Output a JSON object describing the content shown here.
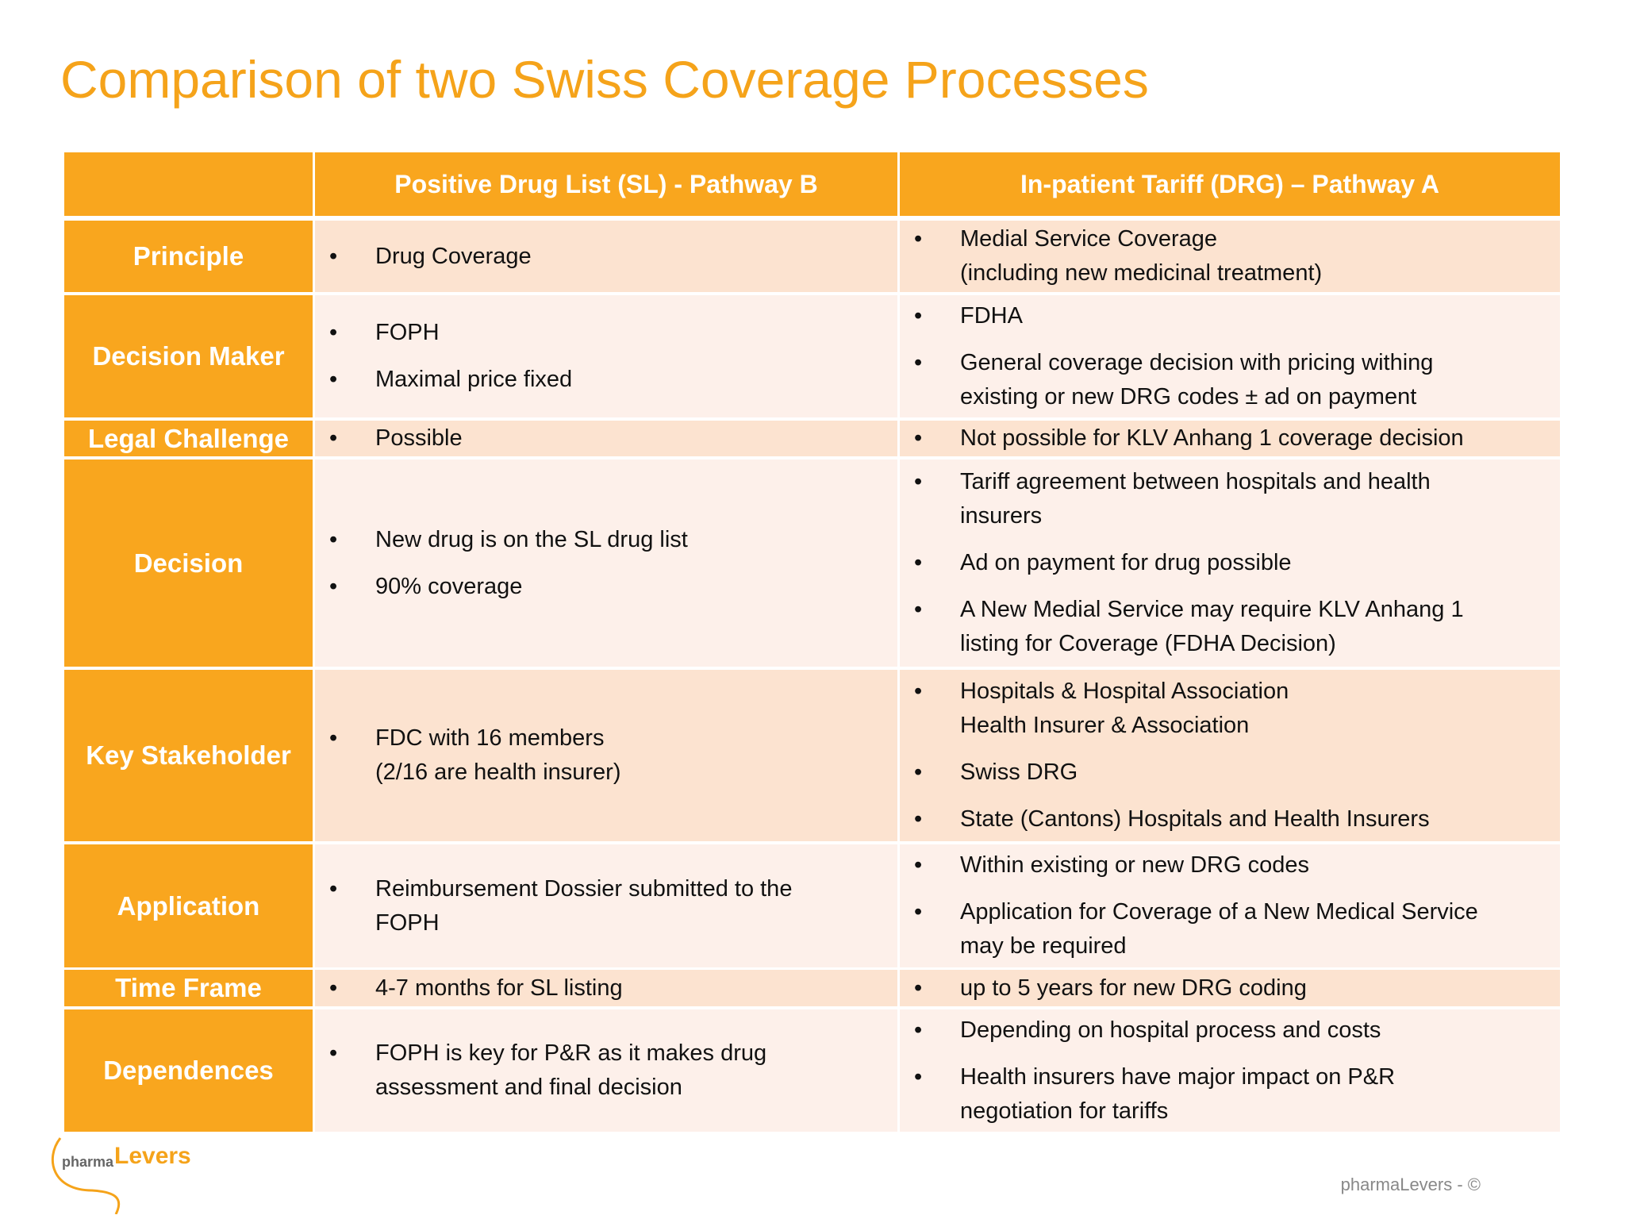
{
  "header": {
    "title": "Comparison of two Swiss Coverage Processes"
  },
  "table": {
    "columns": [
      "Positive Drug List (SL) - Pathway B",
      "In-patient Tariff (DRG) – Pathway A"
    ],
    "rows": [
      {
        "label": "Principle",
        "col1": [
          "Drug Coverage"
        ],
        "col2": [
          "Medial Service Coverage\n(including new medicinal treatment)"
        ]
      },
      {
        "label": "Decision Maker",
        "col1": [
          "FOPH",
          "Maximal price fixed"
        ],
        "col2": [
          "FDHA",
          "General coverage decision with pricing withing\nexisting or new DRG codes ± ad on payment"
        ]
      },
      {
        "label": "Legal Challenge",
        "col1": [
          "Possible"
        ],
        "col2": [
          "Not possible for KLV Anhang 1 coverage decision"
        ]
      },
      {
        "label": "Decision",
        "col1": [
          "New drug is on the SL drug list",
          "90% coverage"
        ],
        "col2": [
          "Tariff agreement between hospitals and health\ninsurers",
          "Ad on payment for drug possible",
          "A New Medial Service may require KLV Anhang 1\nlisting for Coverage (FDHA Decision)"
        ]
      },
      {
        "label": "Key Stakeholder",
        "col1": [
          "FDC with 16 members\n (2/16 are health insurer)"
        ],
        "col2": [
          "Hospitals & Hospital Association\nHealth Insurer & Association",
          "Swiss DRG",
          "State (Cantons) Hospitals and Health Insurers"
        ]
      },
      {
        "label": "Application",
        "col1": [
          "Reimbursement Dossier submitted to the\nFOPH"
        ],
        "col2": [
          "Within existing or new DRG codes",
          "Application for Coverage of a New Medical Service\nmay be required"
        ]
      },
      {
        "label": "Time Frame",
        "col1": [
          "4-7 months for SL listing"
        ],
        "col2": [
          "up to 5 years for new DRG coding"
        ]
      },
      {
        "label": "Dependences",
        "col1": [
          "FOPH is key for P&R as it makes drug\nassessment and final decision"
        ],
        "col2": [
          "Depending on hospital process and costs",
          "Health insurers have major impact on P&R\nnegotiation for tariffs"
        ]
      }
    ]
  },
  "footer": {
    "logo_prefix": "pharma",
    "logo_name": "Levers",
    "text": "pharmaLevers - ©"
  }
}
